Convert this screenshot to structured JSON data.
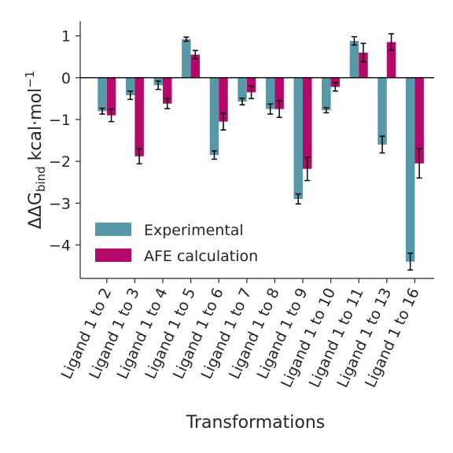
{
  "colors": {
    "experimental": "#5799a9",
    "afe": "#b5086b",
    "axis": "#262626",
    "errorbar": "#000000"
  },
  "chart_data": {
    "type": "bar",
    "xlabel": "Transformations",
    "ylabel": {
      "prefix": "ΔΔG",
      "subscript": "bind",
      "unit": " kcal·mol",
      "superscript": "−1"
    },
    "ylim": [
      -4.8,
      1.35
    ],
    "yticks": [
      {
        "value": 1,
        "label": "1"
      },
      {
        "value": 0,
        "label": "0"
      },
      {
        "value": -1,
        "label": "−1"
      },
      {
        "value": -2,
        "label": "−2"
      },
      {
        "value": -3,
        "label": "−3"
      },
      {
        "value": -4,
        "label": "−4"
      }
    ],
    "grid": false,
    "legend_position": "lower-left",
    "categories": [
      "Ligand 1 to 2",
      "Ligand 1 to 3",
      "Ligand 1 to 4",
      "Ligand 1 to 5",
      "Ligand 1 to 6",
      "Ligand 1 to 7",
      "Ligand 1 to 8",
      "Ligand 1 to 9",
      "Ligand 1 to 10",
      "Ligand 1 to 11",
      "Ligand 1 to 13",
      "Ligand 1 to 16"
    ],
    "series": [
      {
        "name": "Experimental",
        "color_key": "experimental",
        "values": [
          -0.8,
          -0.42,
          -0.18,
          0.92,
          -1.85,
          -0.57,
          -0.75,
          -2.9,
          -0.78,
          0.88,
          -1.6,
          -4.4
        ],
        "errors": [
          0.07,
          0.1,
          0.1,
          0.05,
          0.1,
          0.08,
          0.12,
          0.12,
          0.06,
          0.1,
          0.2,
          0.2
        ]
      },
      {
        "name": "AFE calculation",
        "color_key": "afe",
        "values": [
          -0.9,
          -1.88,
          -0.62,
          0.55,
          -1.05,
          -0.35,
          -0.75,
          -2.18,
          -0.22,
          0.6,
          0.85,
          -2.05
        ],
        "errors": [
          0.15,
          0.18,
          0.12,
          0.1,
          0.2,
          0.15,
          0.2,
          0.28,
          0.1,
          0.22,
          0.2,
          0.35
        ]
      }
    ]
  }
}
